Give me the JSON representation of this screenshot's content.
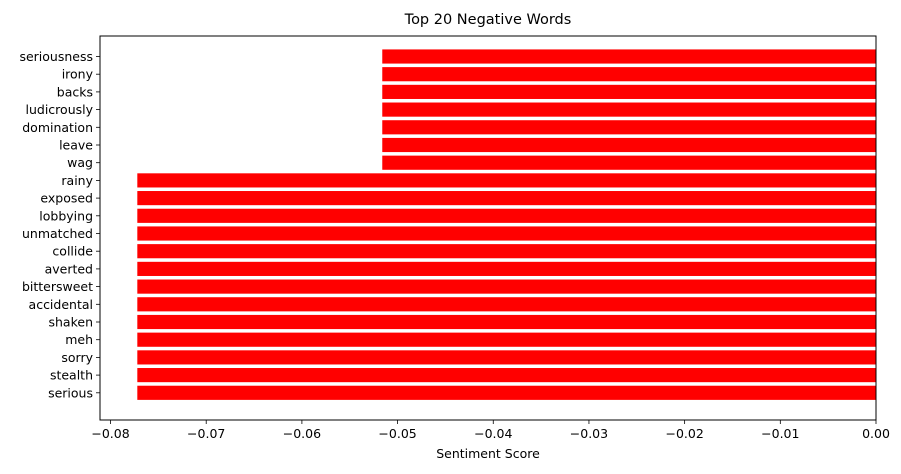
{
  "chart_data": {
    "type": "bar",
    "orientation": "horizontal",
    "title": "Top 20 Negative Words",
    "xlabel": "Sentiment Score",
    "ylabel": "",
    "categories": [
      "seriousness",
      "irony",
      "backs",
      "ludicrously",
      "domination",
      "leave",
      "wag",
      "rainy",
      "exposed",
      "lobbying",
      "unmatched",
      "collide",
      "averted",
      "bittersweet",
      "accidental",
      "shaken",
      "meh",
      "sorry",
      "stealth",
      "serious"
    ],
    "values": [
      -0.0516,
      -0.0516,
      -0.0516,
      -0.0516,
      -0.0516,
      -0.0516,
      -0.0516,
      -0.0772,
      -0.0772,
      -0.0772,
      -0.0772,
      -0.0772,
      -0.0772,
      -0.0772,
      -0.0772,
      -0.0772,
      -0.0772,
      -0.0772,
      -0.0772,
      -0.0772
    ],
    "xlim": [
      -0.0811,
      0.0
    ],
    "xticks": [
      -0.08,
      -0.07,
      -0.06,
      -0.05,
      -0.04,
      -0.03,
      -0.02,
      -0.01,
      0.0
    ],
    "xtick_labels": [
      "−0.08",
      "−0.07",
      "−0.06",
      "−0.05",
      "−0.04",
      "−0.03",
      "−0.02",
      "−0.01",
      "0.00"
    ],
    "grid": false,
    "bar_color": "#ff0000"
  }
}
